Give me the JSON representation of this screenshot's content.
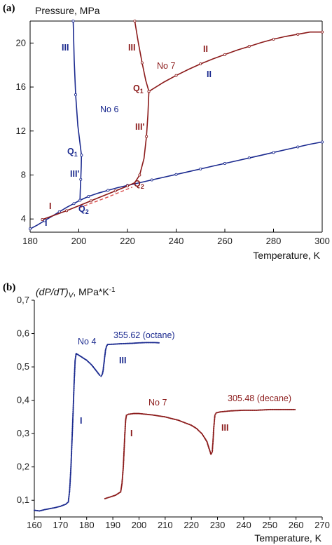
{
  "colors": {
    "blue": "#1b2a8f",
    "red": "#8b1a1a",
    "dash": "#d94b4b",
    "axis": "#000000"
  },
  "chart_data": [
    {
      "panel_label": "(a)",
      "type": "line",
      "ylabel": "Pressure, MPa",
      "xlabel": "Temperature, K",
      "xlim": [
        180,
        300
      ],
      "ylim": [
        2.8,
        22
      ],
      "xticks": [
        "180",
        "200",
        "220",
        "240",
        "260",
        "280",
        "300"
      ],
      "yticks": [
        "4",
        "8",
        "12",
        "16",
        "20"
      ],
      "series": [
        {
          "name": "No 6",
          "color": "#1b2a8f",
          "x": [
            180,
            183,
            186,
            189,
            192,
            195,
            198,
            200.5,
            204,
            208,
            212,
            216,
            220,
            225,
            230,
            235,
            240,
            245,
            250,
            255,
            260,
            265,
            270,
            275,
            280,
            285,
            290,
            295,
            300
          ],
          "y": [
            3.1,
            3.45,
            3.85,
            4.25,
            4.65,
            5.05,
            5.4,
            5.7,
            6.05,
            6.35,
            6.6,
            6.85,
            7.05,
            7.3,
            7.55,
            7.8,
            8.05,
            8.3,
            8.55,
            8.8,
            9.05,
            9.3,
            9.55,
            9.8,
            10.05,
            10.3,
            10.55,
            10.8,
            11.0
          ]
        },
        {
          "name": "No 6 III'",
          "color": "#1b2a8f",
          "x": [
            200.5,
            200.6,
            200.8,
            201.0,
            201.1
          ],
          "y": [
            5.7,
            6.6,
            7.6,
            8.8,
            9.8
          ]
        },
        {
          "name": "No 6 III",
          "color": "#1b2a8f",
          "x": [
            201.1,
            199.6,
            198.7,
            198.1,
            197.7
          ],
          "y": [
            9.8,
            12.5,
            15.3,
            18.5,
            22.0
          ]
        },
        {
          "name": "No 7 I",
          "color": "#8b1a1a",
          "x": [
            185,
            190,
            195,
            200,
            205,
            210,
            215,
            220
          ],
          "y": [
            3.95,
            4.35,
            4.75,
            5.2,
            5.65,
            6.1,
            6.55,
            7.0
          ]
        },
        {
          "name": "No 7 III'",
          "color": "#8b1a1a",
          "x": [
            220,
            223,
            225,
            226.8,
            227.8,
            228.4,
            228.8
          ],
          "y": [
            7.0,
            7.3,
            8.0,
            9.5,
            11.5,
            13.5,
            15.6
          ]
        },
        {
          "name": "No 7 III",
          "color": "#8b1a1a",
          "x": [
            228.8,
            227.5,
            226.0,
            224.5,
            223.0
          ],
          "y": [
            15.6,
            16.6,
            18.2,
            20.0,
            22.0
          ]
        },
        {
          "name": "No 7 II",
          "color": "#8b1a1a",
          "x": [
            228.8,
            235,
            240,
            245,
            250,
            255,
            260,
            265,
            270,
            275,
            280,
            285,
            290,
            295,
            300
          ],
          "y": [
            15.6,
            16.45,
            17.05,
            17.6,
            18.1,
            18.55,
            18.95,
            19.35,
            19.7,
            20.05,
            20.35,
            20.6,
            20.8,
            21.0,
            21.0
          ]
        }
      ]
    },
    {
      "panel_label": "(b)",
      "type": "scatter",
      "ylabel": "(dP/dT)V, MPa*K-1",
      "xlabel": "Temperature, K",
      "xlim": [
        160,
        270
      ],
      "ylim": [
        0.05,
        0.7
      ],
      "xticks": [
        "160",
        "170",
        "180",
        "190",
        "200",
        "210",
        "220",
        "230",
        "240",
        "250",
        "260",
        "270"
      ],
      "yticks": [
        "0,1",
        "0,2",
        "0,3",
        "0,4",
        "0,5",
        "0,6",
        "0,7"
      ],
      "series": [
        {
          "name": "No 4",
          "color": "#1b2a8f",
          "x": [
            160,
            162,
            164,
            166,
            168,
            170,
            172,
            173,
            173.5,
            174.0,
            174.4,
            174.8,
            175.2,
            175.6,
            176,
            177,
            178,
            180,
            182,
            183,
            184,
            185,
            185.5,
            186,
            186.3,
            186.6,
            186.9,
            187.2,
            187.6,
            188,
            190,
            192,
            195,
            198,
            200,
            203,
            206,
            208
          ],
          "y": [
            0.07,
            0.068,
            0.072,
            0.075,
            0.078,
            0.082,
            0.088,
            0.095,
            0.13,
            0.2,
            0.28,
            0.36,
            0.45,
            0.52,
            0.54,
            0.535,
            0.53,
            0.52,
            0.505,
            0.495,
            0.485,
            0.475,
            0.472,
            0.478,
            0.49,
            0.51,
            0.53,
            0.55,
            0.562,
            0.567,
            0.568,
            0.569,
            0.57,
            0.571,
            0.572,
            0.573,
            0.573,
            0.572
          ]
        },
        {
          "name": "No 7",
          "color": "#8b1a1a",
          "x": [
            187,
            189,
            191,
            192,
            193,
            193.5,
            194,
            194.3,
            194.6,
            194.9,
            195.2,
            196,
            198,
            200,
            205,
            210,
            215,
            220,
            222,
            224,
            225,
            226,
            226.5,
            227,
            227.5,
            228,
            228.3,
            228.6,
            229,
            229.5,
            231,
            235,
            240,
            245,
            250,
            255,
            260
          ],
          "y": [
            0.105,
            0.11,
            0.115,
            0.12,
            0.125,
            0.15,
            0.2,
            0.25,
            0.3,
            0.34,
            0.355,
            0.358,
            0.36,
            0.36,
            0.356,
            0.35,
            0.34,
            0.325,
            0.315,
            0.3,
            0.288,
            0.275,
            0.262,
            0.25,
            0.238,
            0.245,
            0.28,
            0.32,
            0.355,
            0.362,
            0.365,
            0.368,
            0.37,
            0.37,
            0.372,
            0.372,
            0.372
          ]
        }
      ]
    }
  ],
  "labels_a": {
    "I_blue": "I",
    "I_red": "I",
    "III_blue": "III",
    "III_red": "III",
    "IIIp_blue": "III'",
    "IIIp_red": "III'",
    "II_blue": "II",
    "II_red": "II",
    "No6": "No 6",
    "No7": "No 7",
    "Q": "Q",
    "Q1_sub": "1",
    "Q2_sub": "2"
  },
  "labels_b": {
    "No4": "No 4",
    "No7": "No 7",
    "I_blue": "I",
    "I_red": "I",
    "III_blue": "III",
    "III_red": "III",
    "octane": "355.62 (octane)",
    "decane": "305.48 (decane)",
    "ylab_main": "(dP/dT)",
    "ylab_sub": "V",
    "ylab_unit": ", MPa*K",
    "ylab_sup": "-1"
  }
}
